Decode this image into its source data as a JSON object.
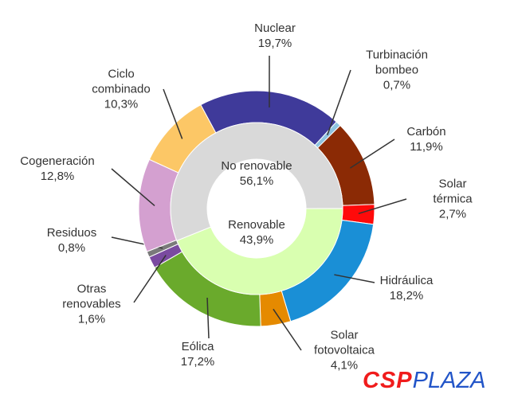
{
  "chart_data": [
    {
      "type": "donut",
      "categories": [
        "Nuclear",
        "Turbinación\nbombeo",
        "Carbón",
        "Solar térmica",
        "Hidráulica",
        "Solar\nfotovoltaica",
        "Eólica",
        "Otras\nrenovables",
        "Residuos",
        "Cogeneración",
        "Ciclo\ncombinado"
      ],
      "values": [
        19.7,
        0.7,
        11.9,
        2.7,
        18.2,
        4.1,
        17.2,
        1.6,
        0.8,
        12.8,
        10.3
      ],
      "value_labels": [
        "19,7%",
        "0,7%",
        "11,9%",
        "2,7%",
        "18,2%",
        "4,1%",
        "17,2%",
        "1,6%",
        "0,8%",
        "12,8%",
        "10,3%"
      ],
      "colors": [
        "#3f3a9a",
        "#8fc4e0",
        "#8b2a05",
        "#ff0a0a",
        "#1a8fd6",
        "#e58a00",
        "#6aaa2c",
        "#7a4aa0",
        "#7a7a7a",
        "#d4a0d0",
        "#fcc766"
      ]
    },
    {
      "type": "donut",
      "categories": [
        "No renovable",
        "Renovable"
      ],
      "values": [
        56.1,
        43.9
      ],
      "value_labels": [
        "56,1%",
        "43,9%"
      ],
      "colors": [
        "#d9d9d9",
        "#d9ffb0"
      ]
    }
  ],
  "logo": {
    "left": "CSP",
    "right": "PLAZA"
  }
}
